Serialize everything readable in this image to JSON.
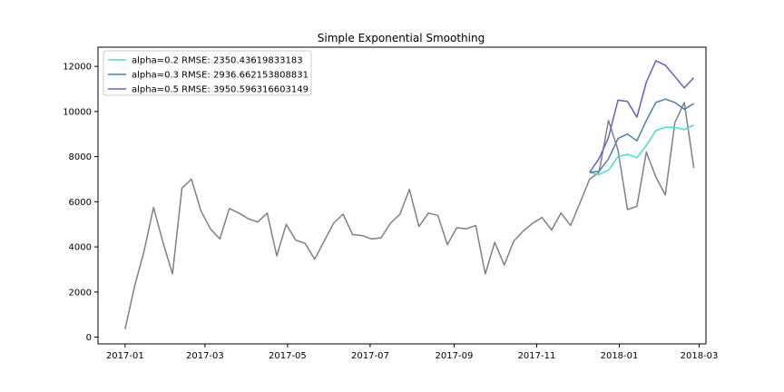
{
  "chart_data": {
    "type": "line",
    "title": "Simple Exponential Smoothing",
    "xlabel": "",
    "ylabel": "",
    "grid": false,
    "legend_position": "top-left",
    "x_ticks": [
      "2017-01",
      "2017-03",
      "2017-05",
      "2017-07",
      "2017-09",
      "2017-11",
      "2018-01",
      "2018-03"
    ],
    "y_ticks": [
      "0",
      "2000",
      "4000",
      "6000",
      "8000",
      "10000",
      "12000"
    ],
    "xlim": [
      "2016-12-12",
      "2018-03-06"
    ],
    "ylim": [
      -300,
      12850
    ],
    "actual": {
      "color": "#808080",
      "x": [
        "2017-01-01",
        "2017-01-08",
        "2017-01-15",
        "2017-01-22",
        "2017-01-29",
        "2017-02-05",
        "2017-02-12",
        "2017-02-19",
        "2017-02-26",
        "2017-03-05",
        "2017-03-12",
        "2017-03-19",
        "2017-03-26",
        "2017-04-02",
        "2017-04-09",
        "2017-04-16",
        "2017-04-23",
        "2017-04-30",
        "2017-05-07",
        "2017-05-14",
        "2017-05-21",
        "2017-05-28",
        "2017-06-04",
        "2017-06-11",
        "2017-06-18",
        "2017-06-25",
        "2017-07-02",
        "2017-07-09",
        "2017-07-16",
        "2017-07-23",
        "2017-07-30",
        "2017-08-06",
        "2017-08-13",
        "2017-08-20",
        "2017-08-27",
        "2017-09-03",
        "2017-09-10",
        "2017-09-17",
        "2017-09-24",
        "2017-10-01",
        "2017-10-08",
        "2017-10-15",
        "2017-10-22",
        "2017-10-29",
        "2017-11-05",
        "2017-11-12",
        "2017-11-19",
        "2017-11-26",
        "2017-12-03",
        "2017-12-10",
        "2017-12-17",
        "2017-12-24",
        "2017-12-31",
        "2018-01-07",
        "2018-01-14",
        "2018-01-21",
        "2018-01-28",
        "2018-02-04",
        "2018-02-11",
        "2018-02-18",
        "2018-02-25"
      ],
      "y": [
        350,
        2250,
        3800,
        5750,
        4200,
        2800,
        6600,
        7000,
        5600,
        4800,
        4350,
        5700,
        5500,
        5250,
        5100,
        5500,
        3600,
        5000,
        4300,
        4150,
        3450,
        4250,
        5050,
        5450,
        4550,
        4500,
        4350,
        4400,
        5050,
        5450,
        6550,
        4900,
        5500,
        5400,
        4100,
        4850,
        4800,
        4950,
        2800,
        4200,
        3200,
        4250,
        4700,
        5050,
        5300,
        4750,
        5500,
        4950,
        5950,
        7000,
        7300,
        9600,
        8300,
        5650,
        5800,
        8200,
        7100,
        6300,
        9500,
        10400,
        7500
      ]
    },
    "series": [
      {
        "name": "alpha=0.2 RMSE: 2350.43619833183",
        "color": "#40e0d0",
        "x": [
          "2017-12-10",
          "2017-12-17",
          "2017-12-24",
          "2017-12-31",
          "2018-01-07",
          "2018-01-14",
          "2018-01-21",
          "2018-01-28",
          "2018-02-04",
          "2018-02-11",
          "2018-02-18",
          "2018-02-25"
        ],
        "y": [
          7300,
          7200,
          7400,
          8000,
          8100,
          7950,
          8500,
          9150,
          9300,
          9300,
          9200,
          9400
        ]
      },
      {
        "name": "alpha=0.3 RMSE: 2936.662153808831",
        "color": "#4682b4",
        "x": [
          "2017-12-10",
          "2017-12-17",
          "2017-12-24",
          "2017-12-31",
          "2018-01-07",
          "2018-01-14",
          "2018-01-21",
          "2018-01-28",
          "2018-02-04",
          "2018-02-11",
          "2018-02-18",
          "2018-02-25"
        ],
        "y": [
          7300,
          7350,
          7900,
          8800,
          9000,
          8700,
          9600,
          10400,
          10550,
          10400,
          10100,
          10350
        ]
      },
      {
        "name": "alpha=0.5 RMSE: 3950.596316603149",
        "color": "#6a5acd",
        "x": [
          "2017-12-10",
          "2017-12-17",
          "2017-12-24",
          "2017-12-31",
          "2018-01-07",
          "2018-01-14",
          "2018-01-21",
          "2018-01-28",
          "2018-02-04",
          "2018-02-11",
          "2018-02-18",
          "2018-02-25"
        ],
        "y": [
          7300,
          7900,
          8850,
          10500,
          10450,
          9750,
          11300,
          12250,
          12050,
          11550,
          11050,
          11500
        ]
      }
    ]
  }
}
